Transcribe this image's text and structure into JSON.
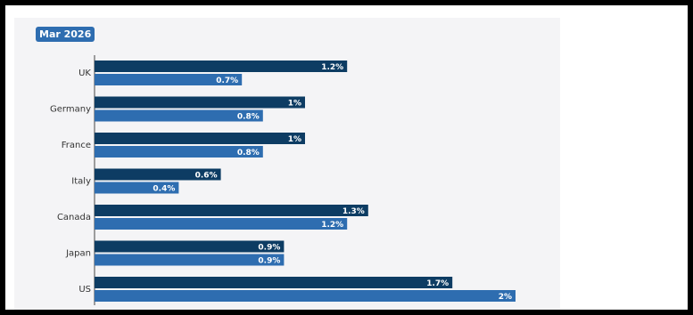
{
  "badge": "Mar 2026",
  "colors": {
    "series_dark": "#0d3c63",
    "series_light": "#2e6db0",
    "badge_bg": "#2e6db0"
  },
  "chart_data": {
    "type": "bar",
    "orientation": "horizontal",
    "title": "",
    "xlabel": "",
    "ylabel": "",
    "categories": [
      "UK",
      "Germany",
      "France",
      "Italy",
      "Canada",
      "Japan",
      "US"
    ],
    "series": [
      {
        "values": [
          1.2,
          1,
          1,
          0.6,
          1.3,
          0.9,
          1.7
        ],
        "labels": [
          "1.2%",
          "1%",
          "1%",
          "0.6%",
          "1.3%",
          "0.9%",
          "1.7%"
        ]
      },
      {
        "values": [
          0.7,
          0.8,
          0.8,
          0.4,
          1.2,
          0.9,
          2
        ],
        "labels": [
          "0.7%",
          "0.8%",
          "0.8%",
          "0.4%",
          "1.2%",
          "0.9%",
          "2%"
        ]
      }
    ],
    "xlim": [
      0,
      2
    ],
    "grid": false,
    "legend": "none"
  }
}
